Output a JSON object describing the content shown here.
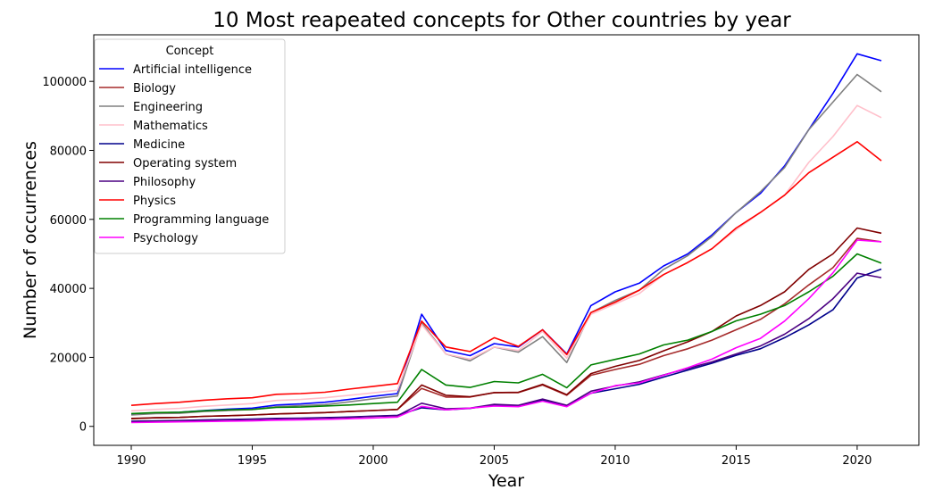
{
  "chart_data": {
    "type": "line",
    "title": "10 Most reapeated concepts for Other countries by year",
    "xlabel": "Year",
    "ylabel": "Number of occurrences",
    "xlim": [
      1988.45,
      2022.55
    ],
    "ylim": [
      -5500,
      113500
    ],
    "xticks": [
      1990,
      1995,
      2000,
      2005,
      2010,
      2015,
      2020
    ],
    "yticks": [
      0,
      20000,
      40000,
      60000,
      80000,
      100000
    ],
    "grid": false,
    "legend": {
      "title": "Concept",
      "placement": "upper-left"
    },
    "x": [
      1990,
      1991,
      1992,
      1993,
      1994,
      1995,
      1996,
      1997,
      1998,
      1999,
      2000,
      2001,
      2002,
      2003,
      2004,
      2005,
      2006,
      2007,
      2008,
      2009,
      2010,
      2011,
      2012,
      2013,
      2014,
      2015,
      2016,
      2017,
      2018,
      2019,
      2020,
      2021
    ],
    "series": [
      {
        "name": "Artificial intelligence",
        "color": "#0000ff",
        "values": [
          3500,
          3900,
          4100,
          4600,
          5000,
          5300,
          6200,
          6500,
          7000,
          7800,
          8700,
          9500,
          32500,
          22000,
          20500,
          24000,
          23000,
          28000,
          21000,
          35000,
          39000,
          41500,
          46500,
          50000,
          55500,
          62000,
          67500,
          75500,
          86000,
          96500,
          108000,
          106000
        ]
      },
      {
        "name": "Biology",
        "color": "#a52a2a",
        "values": [
          2300,
          2500,
          2600,
          2900,
          3100,
          3300,
          3600,
          3800,
          4000,
          4300,
          4600,
          4900,
          11000,
          8500,
          8500,
          9800,
          9800,
          12000,
          9000,
          14800,
          16500,
          18000,
          20500,
          22500,
          25000,
          28000,
          31000,
          35500,
          41000,
          46000,
          54500,
          53500
        ]
      },
      {
        "name": "Engineering",
        "color": "#808080",
        "values": [
          3300,
          3700,
          3800,
          4300,
          4600,
          4900,
          5700,
          6000,
          6300,
          7100,
          8000,
          8800,
          30000,
          21000,
          19000,
          23000,
          21500,
          26000,
          18500,
          33000,
          36500,
          39500,
          45500,
          49500,
          55000,
          62000,
          68000,
          75000,
          86000,
          94000,
          102000,
          97000
        ]
      },
      {
        "name": "Mathematics",
        "color": "#ffc0cb",
        "values": [
          4500,
          4900,
          5200,
          5800,
          6200,
          6600,
          7500,
          7800,
          8300,
          9000,
          9700,
          10500,
          29500,
          21000,
          19500,
          23000,
          22000,
          27500,
          19800,
          32500,
          35500,
          38500,
          44000,
          47500,
          51500,
          57000,
          62000,
          67000,
          76500,
          84000,
          93000,
          89500
        ]
      },
      {
        "name": "Medicine",
        "color": "#00008b",
        "values": [
          1500,
          1600,
          1700,
          1850,
          2000,
          2100,
          2300,
          2400,
          2550,
          2700,
          2950,
          3200,
          5400,
          4800,
          5200,
          6200,
          6000,
          7600,
          5800,
          9600,
          10900,
          12200,
          14300,
          16300,
          18300,
          20600,
          22500,
          25700,
          29400,
          33800,
          43000,
          45600
        ]
      },
      {
        "name": "Operating system",
        "color": "#800000",
        "values": [
          2200,
          2500,
          2600,
          2900,
          3100,
          3300,
          3600,
          3800,
          4000,
          4300,
          4600,
          4900,
          12000,
          9000,
          8600,
          9800,
          9900,
          12200,
          9200,
          15300,
          17400,
          19100,
          21900,
          24500,
          27500,
          32000,
          35000,
          39000,
          45500,
          50000,
          57500,
          56000
        ]
      },
      {
        "name": "Philosophy",
        "color": "#4b0082",
        "values": [
          1400,
          1500,
          1600,
          1750,
          1900,
          2000,
          2200,
          2300,
          2450,
          2600,
          2900,
          3100,
          6700,
          5100,
          5300,
          6400,
          6100,
          7900,
          6100,
          10200,
          11700,
          12900,
          14900,
          16800,
          18700,
          21000,
          23300,
          26700,
          31200,
          37000,
          44400,
          43100
        ]
      },
      {
        "name": "Physics",
        "color": "#ff0000",
        "values": [
          6100,
          6600,
          7000,
          7600,
          8000,
          8300,
          9300,
          9500,
          9900,
          10800,
          11600,
          12400,
          30500,
          23000,
          21700,
          25700,
          23200,
          28000,
          20800,
          33000,
          36000,
          39500,
          44000,
          47500,
          51500,
          57500,
          62000,
          67000,
          73500,
          78000,
          82500,
          77000
        ]
      },
      {
        "name": "Programming language",
        "color": "#008000",
        "values": [
          3700,
          4000,
          4100,
          4500,
          4800,
          4900,
          5500,
          5600,
          5900,
          6200,
          6600,
          7000,
          16500,
          12000,
          11300,
          13000,
          12600,
          15100,
          11200,
          17800,
          19400,
          21000,
          23600,
          25000,
          27500,
          30600,
          32500,
          35000,
          39000,
          43500,
          50000,
          47300
        ]
      },
      {
        "name": "Psychology",
        "color": "#ff00ff",
        "values": [
          1100,
          1200,
          1300,
          1400,
          1500,
          1600,
          1800,
          1900,
          2000,
          2200,
          2450,
          2700,
          5800,
          4800,
          5300,
          5900,
          5700,
          7300,
          5700,
          9600,
          11800,
          12600,
          14800,
          17000,
          19500,
          22800,
          25500,
          30500,
          37000,
          44500,
          54000,
          53500
        ]
      }
    ]
  }
}
